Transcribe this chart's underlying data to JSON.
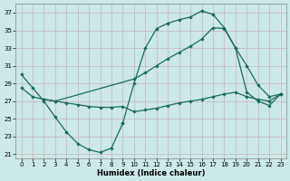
{
  "xlabel": "Humidex (Indice chaleur)",
  "bg_color": "#cce8e8",
  "line_color": "#1a6b5a",
  "grid_color": "#b0d0d0",
  "xlim": [
    -0.5,
    23.5
  ],
  "ylim": [
    20.5,
    38.0
  ],
  "yticks": [
    21,
    23,
    25,
    27,
    29,
    31,
    33,
    35,
    37
  ],
  "xticks": [
    0,
    1,
    2,
    3,
    4,
    5,
    6,
    7,
    8,
    9,
    10,
    11,
    12,
    13,
    14,
    15,
    16,
    17,
    18,
    19,
    20,
    21,
    22,
    23
  ],
  "line_min": {
    "x": [
      0,
      1,
      2,
      3,
      4,
      5,
      6,
      7,
      8,
      9
    ],
    "y": [
      30.0,
      28.5,
      27.0,
      25.2,
      23.5,
      22.2,
      21.5,
      21.2,
      21.7,
      24.5
    ]
  },
  "line_peak": {
    "x": [
      9,
      10,
      11,
      12,
      13,
      14,
      15,
      16,
      17,
      18,
      19,
      20,
      21,
      22,
      23
    ],
    "y": [
      24.5,
      29.0,
      33.0,
      35.2,
      35.8,
      36.2,
      36.5,
      37.2,
      36.8,
      35.3,
      33.0,
      31.0,
      28.8,
      27.5,
      27.8
    ]
  },
  "line_diag": {
    "x": [
      0,
      1,
      2,
      3,
      10,
      11,
      12,
      13,
      14,
      15,
      16,
      17,
      18,
      19,
      20,
      21,
      22,
      23
    ],
    "y": [
      28.5,
      27.5,
      27.2,
      27.0,
      29.5,
      30.2,
      31.0,
      31.8,
      32.5,
      33.2,
      34.0,
      35.3,
      35.2,
      33.0,
      28.0,
      27.0,
      26.5,
      27.8
    ]
  },
  "line_flat": {
    "x": [
      2,
      3,
      4,
      5,
      6,
      7,
      8,
      9,
      10,
      11,
      12,
      13,
      14,
      15,
      16,
      17,
      18,
      19,
      20,
      21,
      22,
      23
    ],
    "y": [
      27.2,
      27.0,
      26.8,
      26.6,
      26.4,
      26.3,
      26.3,
      26.4,
      25.8,
      26.0,
      26.2,
      26.5,
      26.8,
      27.0,
      27.2,
      27.5,
      27.8,
      28.0,
      27.5,
      27.2,
      27.0,
      27.8
    ]
  }
}
